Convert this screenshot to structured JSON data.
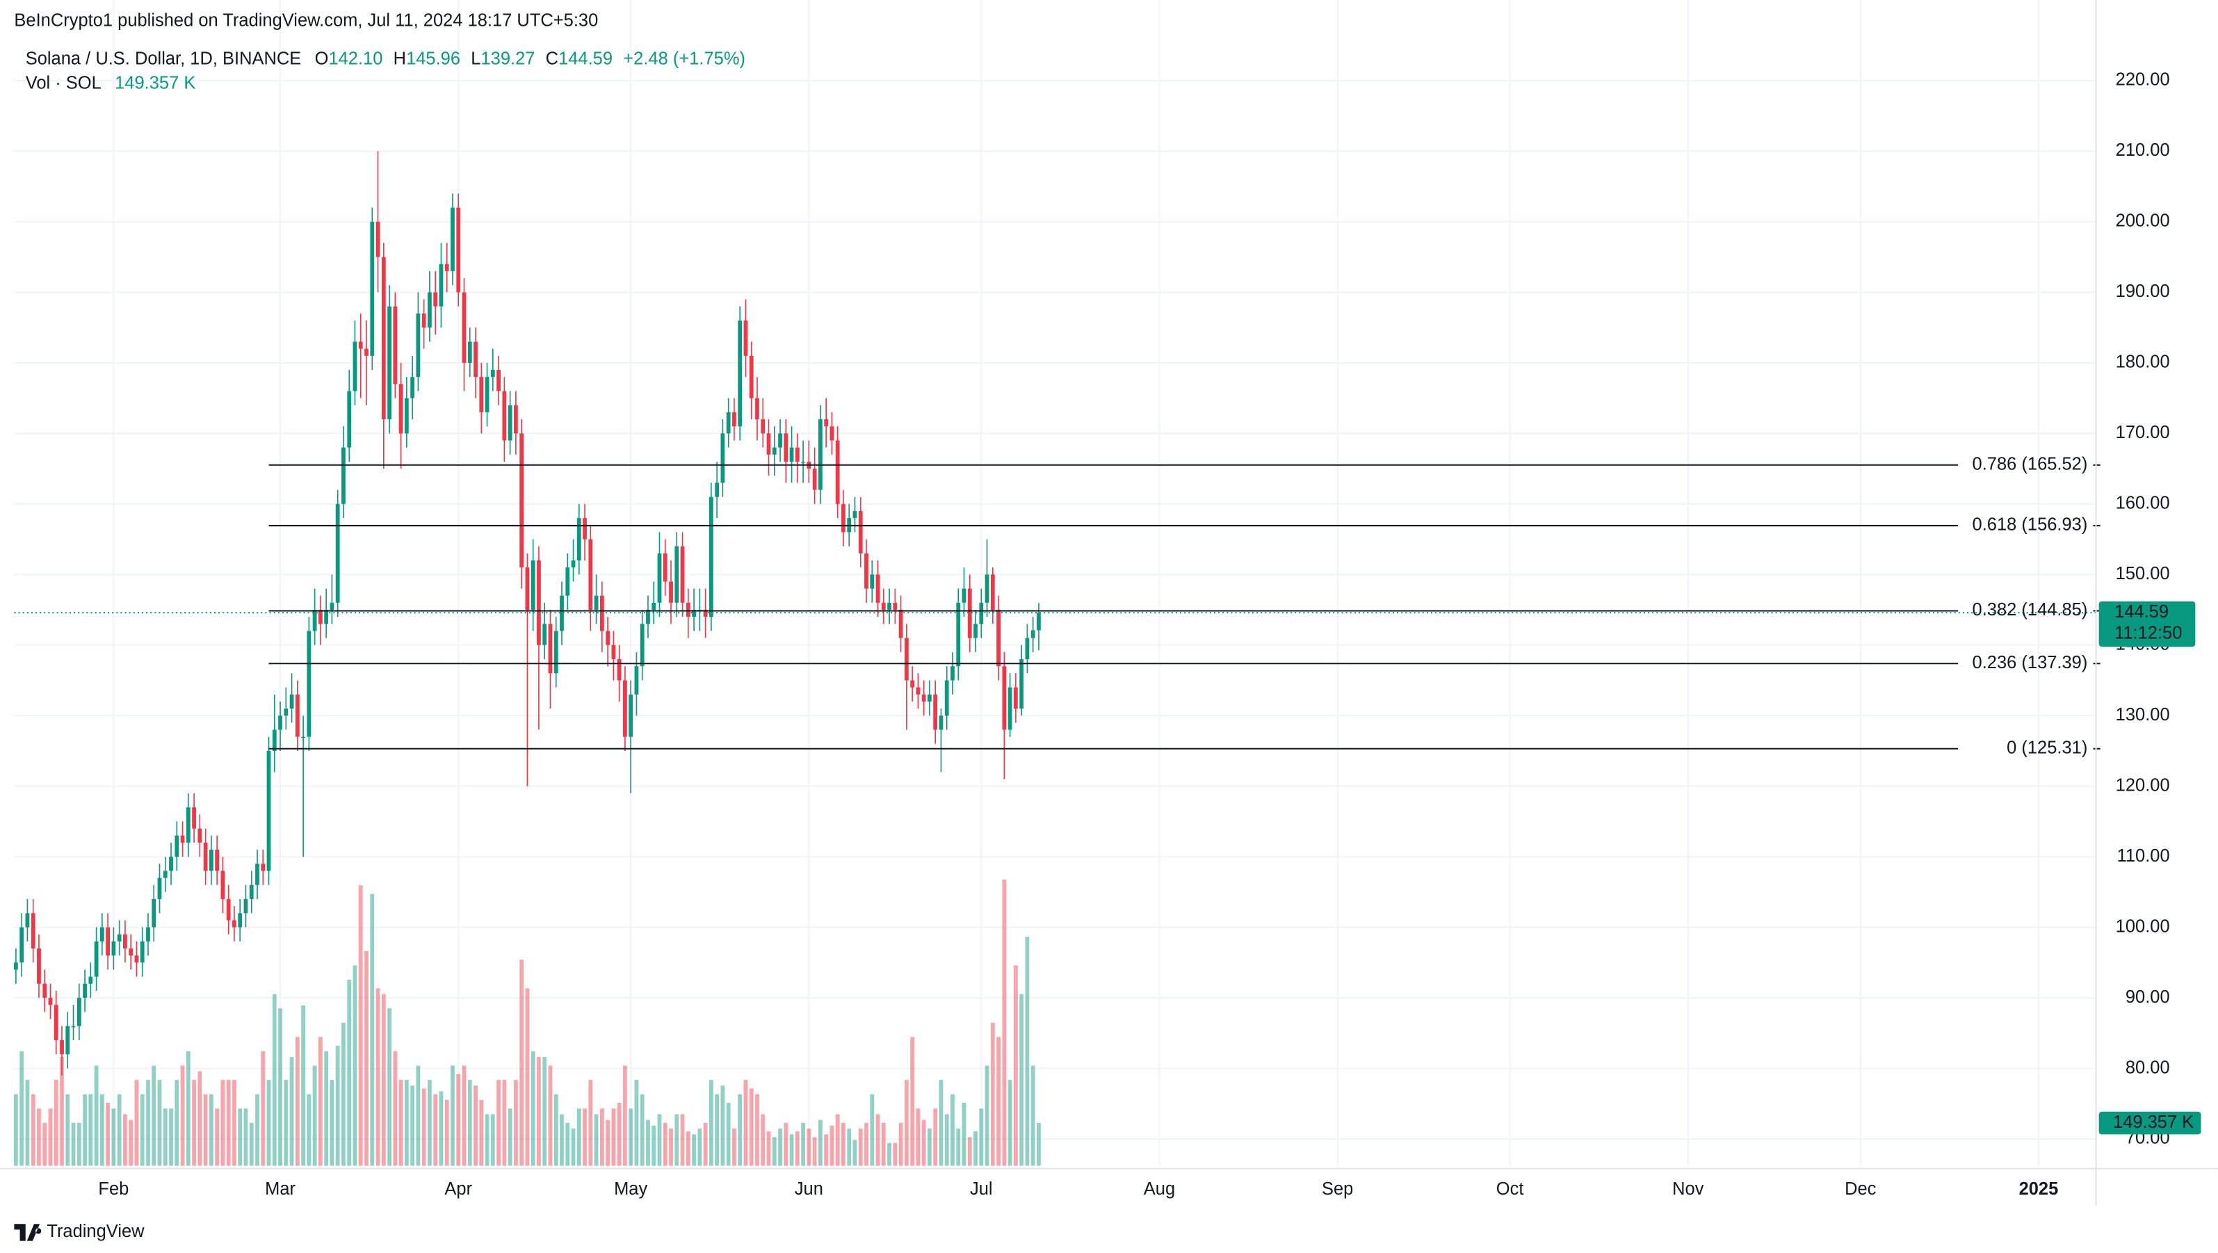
{
  "chart_data": {
    "type": "candlestick",
    "publisher": "BeInCrypto1 published on TradingView.com, Jul 11, 2024 18:17 UTC+5:30",
    "title": "Solana / U.S. Dollar, 1D, BINANCE",
    "legend": {
      "o_label": "O",
      "open": "142.10",
      "h_label": "H",
      "high": "145.96",
      "l_label": "L",
      "low": "139.27",
      "c_label": "C",
      "close": "144.59",
      "change": "+2.48 (+1.75%)"
    },
    "up_color": "#089981",
    "down_color": "#f23645",
    "grid": true,
    "xlim": [
      -0.3,
      362
    ],
    "xticks": [
      {
        "value": 17,
        "label": "Feb"
      },
      {
        "value": 46,
        "label": "Mar"
      },
      {
        "value": 77,
        "label": "Apr"
      },
      {
        "value": 107,
        "label": "May"
      },
      {
        "value": 138,
        "label": "Jun"
      },
      {
        "value": 168,
        "label": "Jul"
      },
      {
        "value": 199,
        "label": "Aug"
      },
      {
        "value": 230,
        "label": "Sep"
      },
      {
        "value": 260,
        "label": "Oct"
      },
      {
        "value": 291,
        "label": "Nov"
      },
      {
        "value": 321,
        "label": "Dec"
      },
      {
        "value": 352,
        "label": "2025"
      }
    ],
    "ylim": [
      66.2,
      225.4
    ],
    "yticks": [
      {
        "value": 70,
        "label": "70.00"
      },
      {
        "value": 80,
        "label": "80.00"
      },
      {
        "value": 90,
        "label": "90.00"
      },
      {
        "value": 100,
        "label": "100.00"
      },
      {
        "value": 110,
        "label": "110.00"
      },
      {
        "value": 120,
        "label": "120.00"
      },
      {
        "value": 130,
        "label": "130.00"
      },
      {
        "value": 140,
        "label": "140.00"
      },
      {
        "value": 150,
        "label": "150.00"
      },
      {
        "value": 160,
        "label": "160.00"
      },
      {
        "value": 170,
        "label": "170.00"
      },
      {
        "value": 180,
        "label": "180.00"
      },
      {
        "value": 190,
        "label": "190.00"
      },
      {
        "value": 200,
        "label": "200.00"
      },
      {
        "value": 210,
        "label": "210.00"
      },
      {
        "value": 220,
        "label": "220.00"
      }
    ],
    "open": [
      94,
      95,
      100,
      102,
      97,
      92,
      90,
      89,
      84,
      82,
      86,
      86,
      90,
      92,
      93,
      98,
      100,
      96,
      98,
      99,
      97,
      96,
      95,
      98,
      100,
      104,
      107,
      108,
      110,
      113,
      112,
      117,
      114,
      112,
      108,
      111,
      108,
      104,
      101,
      100,
      102,
      104,
      106,
      109,
      108,
      125,
      128,
      130,
      131,
      133,
      127,
      127,
      142,
      145,
      143,
      145,
      146,
      160,
      168,
      176,
      183,
      182,
      181,
      200,
      195,
      172,
      188,
      177,
      170,
      175,
      178,
      187,
      185,
      190,
      188,
      194,
      193,
      202,
      190,
      180,
      183,
      178,
      173,
      178,
      179,
      176,
      169,
      174,
      170,
      151,
      145,
      152,
      140,
      143,
      136,
      142,
      147,
      151,
      152,
      158,
      155,
      145,
      147,
      142,
      140,
      138,
      135,
      127,
      133,
      137,
      143,
      145,
      146,
      153,
      149,
      146,
      154,
      146,
      144,
      145,
      145,
      144,
      161,
      163,
      170,
      173,
      171,
      186,
      181,
      175,
      172,
      170,
      167,
      168,
      170,
      166,
      168,
      166,
      166,
      165,
      162,
      172,
      171,
      169,
      160,
      156,
      158,
      159,
      153,
      148,
      150,
      146,
      145,
      146,
      145,
      141,
      135,
      134,
      133,
      132,
      133,
      128,
      130,
      135,
      137,
      146,
      148,
      141,
      143,
      146,
      150,
      145,
      137,
      128,
      134,
      131,
      138,
      141,
      142.1
    ],
    "high": [
      97,
      102,
      104,
      104,
      99,
      94,
      92,
      91,
      86,
      88,
      89,
      92,
      94,
      95,
      100,
      102,
      102,
      100,
      101,
      101,
      99,
      98,
      100,
      102,
      106,
      109,
      110,
      112,
      115,
      115,
      119,
      119,
      116,
      114,
      113,
      113,
      110,
      106,
      103,
      104,
      106,
      108,
      111,
      111,
      127,
      133,
      132,
      134,
      136,
      135,
      130,
      144,
      148,
      147,
      148,
      150,
      162,
      171,
      179,
      186,
      187,
      186,
      202,
      210,
      197,
      191,
      190,
      180,
      178,
      181,
      190,
      189,
      193,
      193,
      197,
      197,
      204,
      204,
      192,
      185,
      185,
      180,
      180,
      182,
      181,
      178,
      176,
      176,
      172,
      153,
      155,
      154,
      146,
      145,
      144,
      149,
      153,
      155,
      160,
      160,
      157,
      150,
      149,
      144,
      142,
      140,
      137,
      135,
      139,
      145,
      147,
      149,
      156,
      155,
      152,
      156,
      156,
      148,
      148,
      148,
      148,
      163,
      166,
      172,
      175,
      175,
      188,
      189,
      183,
      178,
      175,
      172,
      171,
      172,
      172,
      171,
      170,
      169,
      169,
      168,
      174,
      175,
      173,
      171,
      162,
      160,
      161,
      161,
      155,
      152,
      152,
      148,
      148,
      148,
      147,
      143,
      137,
      136,
      135,
      135,
      135,
      131,
      137,
      139,
      148,
      151,
      150,
      145,
      148,
      155,
      151,
      147,
      139,
      136,
      136,
      140,
      143,
      144,
      145.96
    ],
    "low": [
      92,
      93,
      98,
      95,
      90,
      88,
      87,
      82,
      79,
      80,
      84,
      84,
      88,
      90,
      91,
      96,
      94,
      94,
      96,
      95,
      94,
      93,
      93,
      96,
      98,
      102,
      105,
      106,
      108,
      110,
      110,
      112,
      110,
      106,
      106,
      106,
      102,
      99,
      98,
      98,
      100,
      102,
      104,
      106,
      106,
      122,
      125,
      128,
      129,
      125,
      110,
      125,
      140,
      140,
      141,
      143,
      144,
      158,
      166,
      174,
      175,
      174,
      179,
      190,
      165,
      170,
      175,
      165,
      168,
      172,
      176,
      182,
      183,
      184,
      185,
      190,
      191,
      188,
      176,
      178,
      175,
      170,
      171,
      176,
      174,
      166,
      167,
      167,
      148,
      120,
      142,
      128,
      138,
      131,
      134,
      140,
      145,
      149,
      150,
      152,
      142,
      143,
      139,
      137,
      135,
      132,
      125,
      119,
      130,
      135,
      141,
      143,
      144,
      147,
      143,
      144,
      144,
      141,
      142,
      142,
      141,
      142,
      158,
      161,
      168,
      169,
      169,
      178,
      172,
      169,
      168,
      164,
      164,
      166,
      163,
      163,
      163,
      163,
      163,
      160,
      160,
      168,
      167,
      158,
      154,
      154,
      156,
      151,
      146,
      146,
      144,
      143,
      143,
      143,
      139,
      128,
      132,
      131,
      130,
      130,
      126,
      122,
      128,
      133,
      135,
      144,
      139,
      139,
      141,
      144,
      143,
      135,
      121,
      127,
      129,
      130,
      136,
      139,
      139.27
    ],
    "close": [
      95,
      100,
      102,
      97,
      92,
      90,
      89,
      84,
      82,
      86,
      86,
      90,
      92,
      93,
      98,
      100,
      96,
      98,
      99,
      97,
      96,
      95,
      98,
      100,
      104,
      107,
      108,
      110,
      113,
      112,
      117,
      114,
      112,
      108,
      111,
      108,
      104,
      101,
      100,
      102,
      104,
      106,
      109,
      108,
      125,
      128,
      130,
      131,
      133,
      127,
      127,
      142,
      145,
      143,
      145,
      146,
      160,
      168,
      176,
      183,
      182,
      181,
      200,
      195,
      172,
      188,
      177,
      170,
      175,
      178,
      187,
      185,
      190,
      188,
      194,
      193,
      202,
      190,
      180,
      183,
      178,
      173,
      178,
      179,
      176,
      169,
      174,
      170,
      151,
      145,
      152,
      140,
      143,
      136,
      142,
      147,
      151,
      152,
      158,
      155,
      145,
      147,
      142,
      140,
      138,
      135,
      127,
      133,
      137,
      143,
      145,
      146,
      153,
      149,
      146,
      154,
      146,
      144,
      145,
      145,
      144,
      161,
      163,
      170,
      173,
      171,
      186,
      181,
      175,
      172,
      170,
      167,
      168,
      170,
      166,
      168,
      166,
      166,
      165,
      162,
      172,
      171,
      169,
      160,
      156,
      158,
      159,
      153,
      148,
      150,
      146,
      145,
      146,
      145,
      141,
      135,
      134,
      133,
      132,
      133,
      128,
      130,
      135,
      137,
      146,
      148,
      141,
      143,
      146,
      150,
      145,
      137,
      128,
      134,
      131,
      138,
      141,
      142.1,
      144.59
    ],
    "volume": {
      "name": "Vol · SOL",
      "last_label": "149.357 K",
      "ylim": [
        0,
        1100
      ],
      "values": [
        250,
        400,
        300,
        250,
        200,
        150,
        200,
        300,
        380,
        250,
        150,
        150,
        250,
        250,
        350,
        250,
        220,
        200,
        250,
        180,
        160,
        300,
        250,
        300,
        350,
        300,
        200,
        200,
        300,
        350,
        400,
        300,
        330,
        250,
        250,
        200,
        300,
        300,
        300,
        200,
        200,
        150,
        250,
        400,
        300,
        600,
        550,
        300,
        380,
        450,
        560,
        250,
        350,
        450,
        400,
        300,
        420,
        500,
        650,
        700,
        980,
        750,
        950,
        620,
        600,
        550,
        400,
        300,
        300,
        280,
        350,
        270,
        300,
        250,
        260,
        230,
        350,
        320,
        350,
        300,
        280,
        230,
        180,
        180,
        300,
        300,
        200,
        300,
        720,
        620,
        400,
        380,
        380,
        350,
        250,
        180,
        150,
        130,
        200,
        200,
        300,
        180,
        200,
        160,
        200,
        220,
        350,
        200,
        300,
        250,
        160,
        140,
        180,
        150,
        130,
        180,
        180,
        120,
        110,
        130,
        150,
        300,
        250,
        280,
        220,
        130,
        250,
        300,
        270,
        250,
        180,
        120,
        100,
        130,
        150,
        110,
        120,
        150,
        130,
        100,
        160,
        110,
        140,
        180,
        150,
        130,
        90,
        130,
        150,
        250,
        180,
        150,
        80,
        80,
        150,
        300,
        450,
        200,
        160,
        130,
        200,
        300,
        180,
        250,
        130,
        220,
        100,
        120,
        200,
        350,
        500,
        450,
        1000,
        300,
        700,
        600,
        800,
        350,
        149.357
      ]
    },
    "fib_x": [
      44,
      338
    ],
    "fib_levels": [
      {
        "value": 165.52,
        "label": "0.786 (165.52)"
      },
      {
        "value": 156.93,
        "label": "0.618 (156.93)"
      },
      {
        "value": 144.85,
        "label": "0.382 (144.85)"
      },
      {
        "value": 137.39,
        "label": "0.236 (137.39)"
      },
      {
        "value": 125.31,
        "label": "0 (125.31)"
      }
    ],
    "last_price": {
      "value": 144.59,
      "label": "144.59"
    },
    "countdown": "11:12:50",
    "brand": "TradingView"
  }
}
